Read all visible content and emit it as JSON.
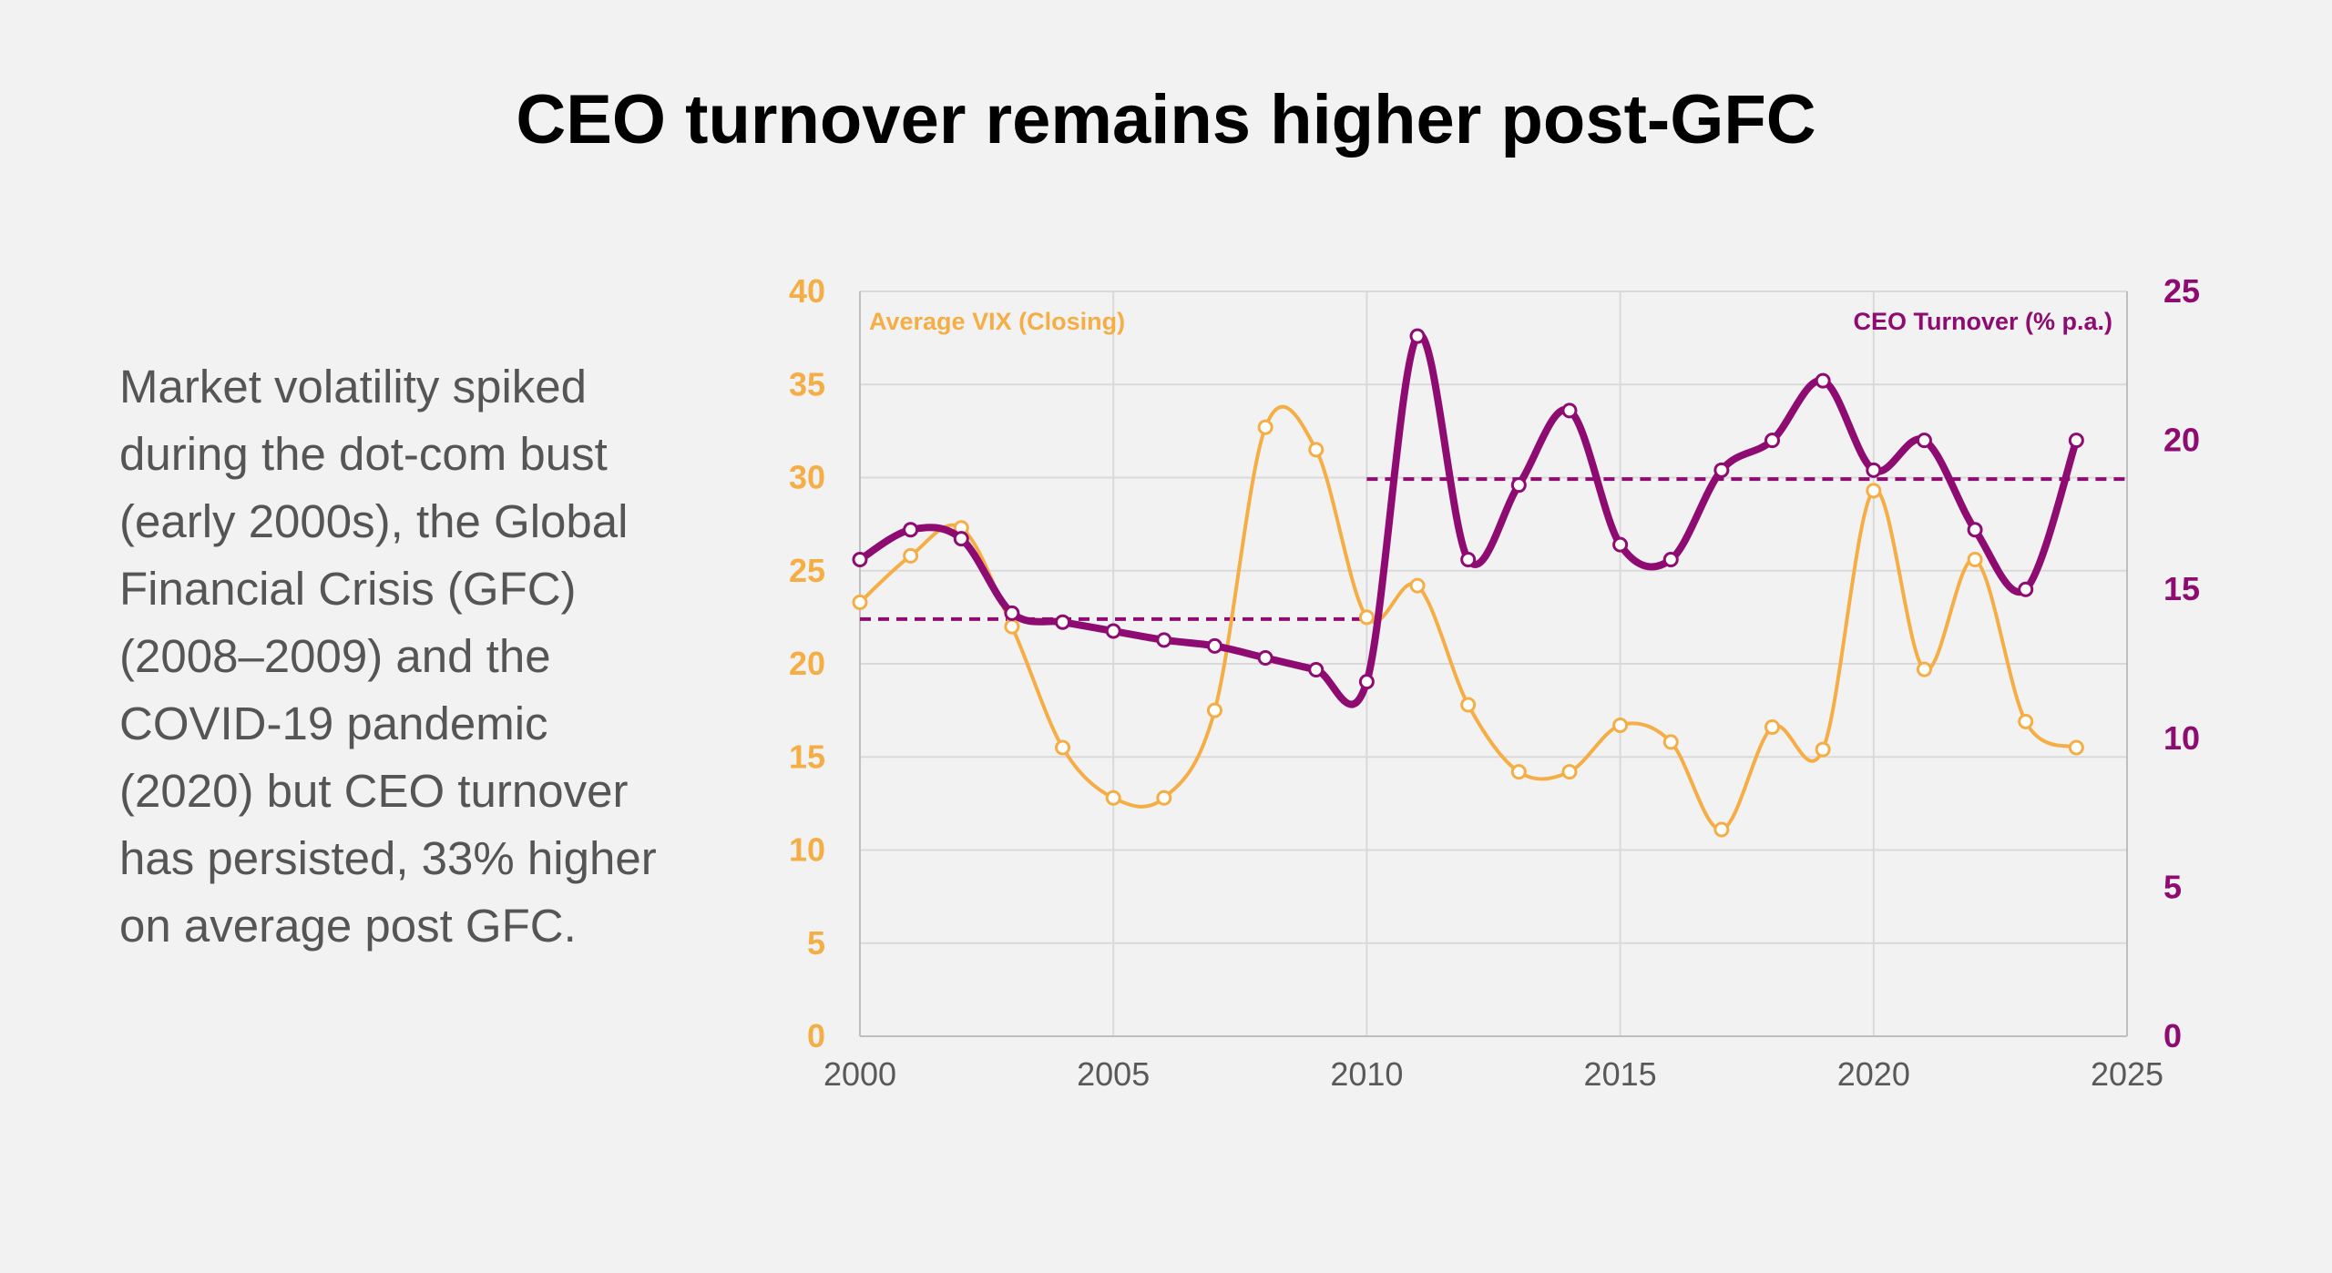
{
  "title": "CEO turnover remains higher post-GFC",
  "body_text": "Market volatility spiked during the dot-com bust (early 2000s), the Global Financial Crisis (GFC) (2008–2009) and the COVID-19 pandemic (2020) but CEO turnover has persisted, 33% higher on average post GFC.",
  "colors": {
    "vix": "#F5AE45",
    "ceo": "#8E0C72",
    "grid": "#d9d9d9",
    "axis_text": "#595959"
  },
  "chart_data": {
    "type": "line",
    "x": [
      2000,
      2001,
      2002,
      2003,
      2004,
      2005,
      2006,
      2007,
      2008,
      2009,
      2010,
      2011,
      2012,
      2013,
      2014,
      2015,
      2016,
      2017,
      2018,
      2019,
      2020,
      2021,
      2022,
      2023,
      2024
    ],
    "series": [
      {
        "name": "Average VIX (Closing)",
        "axis": "left",
        "values": [
          23.3,
          25.8,
          27.3,
          22.0,
          15.5,
          12.8,
          12.8,
          17.5,
          32.7,
          31.5,
          22.5,
          24.2,
          17.8,
          14.2,
          14.2,
          16.7,
          15.8,
          11.1,
          16.6,
          15.4,
          29.3,
          19.7,
          25.6,
          16.9,
          15.5
        ]
      },
      {
        "name": "CEO Turnover (% p.a.)",
        "axis": "right",
        "values": [
          16.0,
          17.0,
          16.7,
          14.2,
          13.9,
          13.6,
          13.3,
          13.1,
          12.7,
          12.3,
          11.9,
          23.5,
          16.0,
          18.5,
          21.0,
          16.5,
          16.0,
          19.0,
          20.0,
          22.0,
          19.0,
          20.0,
          17.0,
          15.0,
          20.0
        ]
      }
    ],
    "averages": [
      {
        "name": "CEO turnover average pre-GFC",
        "x": [
          2000,
          2010
        ],
        "value": 14.0
      },
      {
        "name": "CEO turnover average post-GFC",
        "x": [
          2010,
          2025
        ],
        "value": 18.7
      }
    ],
    "xlim": [
      2000,
      2025
    ],
    "xticks": [
      "2000",
      "2005",
      "2010",
      "2015",
      "2020",
      "2025"
    ],
    "ylim_left": [
      0,
      40
    ],
    "yticks_left": [
      "0",
      "5",
      "10",
      "15",
      "20",
      "25",
      "30",
      "35",
      "40"
    ],
    "ylim_right": [
      0,
      25
    ],
    "yticks_right": [
      "0",
      "5",
      "10",
      "15",
      "20",
      "25"
    ],
    "grid": true,
    "legend_placement": "top-left / top-right labels"
  }
}
